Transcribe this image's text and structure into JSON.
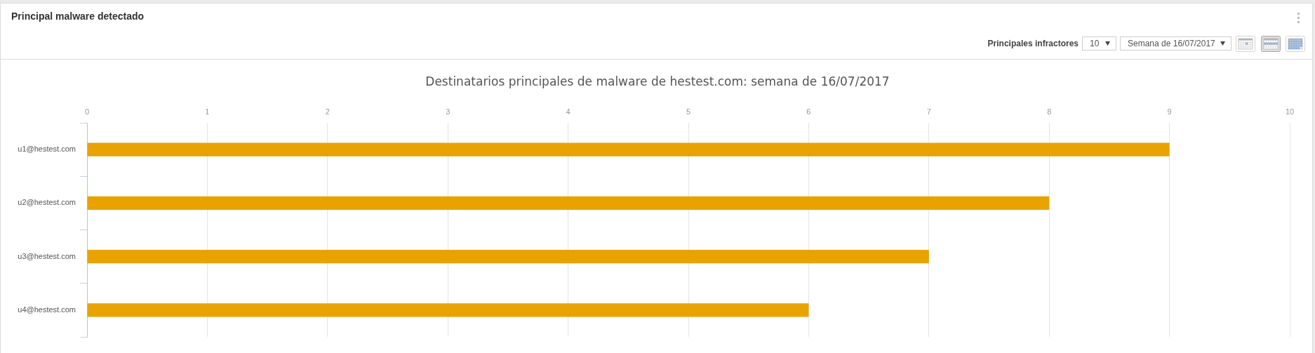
{
  "chart_data": {
    "type": "bar",
    "orientation": "horizontal",
    "title": "Principal malware detectado",
    "subtitle": "Destinatarios principales de malware de hestest.com: semana de 16/07/2017",
    "categories": [
      "u1@hestest.com",
      "u2@hestest.com",
      "u3@hestest.com",
      "u4@hestest.com"
    ],
    "values": [
      9,
      8,
      7,
      6
    ],
    "color": "#e8a300",
    "xlim": [
      0,
      10
    ],
    "xticks": [
      0,
      1,
      2,
      3,
      4,
      5,
      6,
      7,
      8,
      9,
      10
    ],
    "grid": "x",
    "annotations": [
      "Principales infractores",
      "10",
      "Semana de 16/07/2017"
    ]
  }
}
